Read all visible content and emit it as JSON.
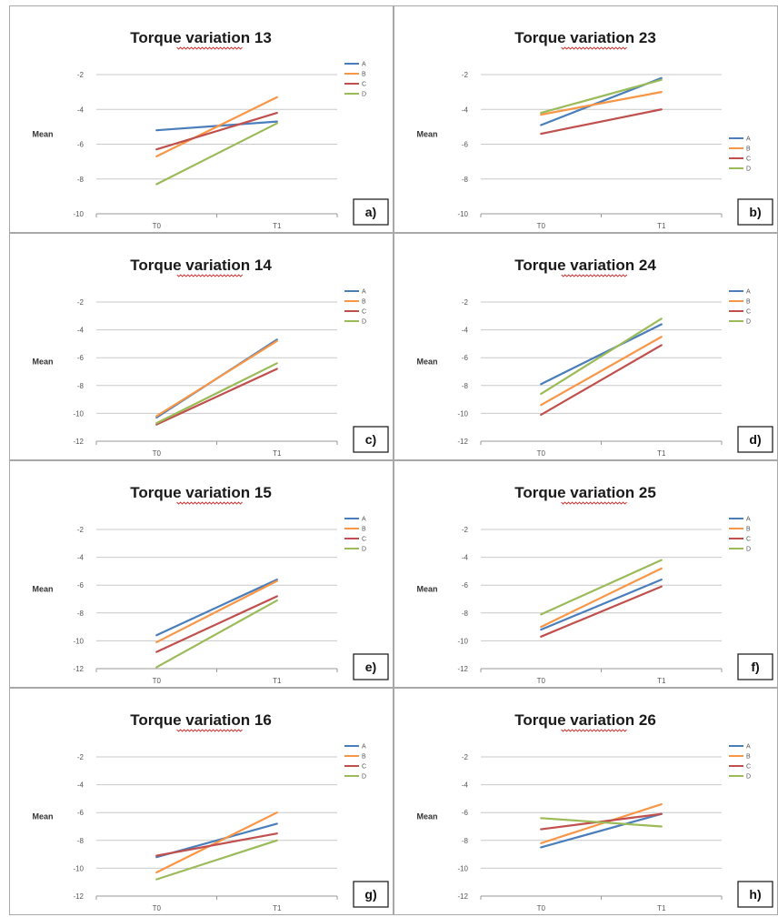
{
  "axis_label": "Mean",
  "legend": [
    "A",
    "B",
    "C",
    "D"
  ],
  "series_colors": [
    "#4a7ebb",
    "#f79646",
    "#c0504d",
    "#9bbb59"
  ],
  "chart_data": [
    {
      "type": "line",
      "title": "Torque variation 13",
      "tag": "a)",
      "categories": [
        "T0",
        "T1"
      ],
      "ylim": [
        -10,
        -2
      ],
      "yticks": [
        -2,
        -4,
        -6,
        -8,
        -10
      ],
      "series": [
        {
          "name": "A",
          "values": [
            -5.2,
            -4.7
          ]
        },
        {
          "name": "B",
          "values": [
            -6.7,
            -3.3
          ]
        },
        {
          "name": "C",
          "values": [
            -6.3,
            -4.2
          ]
        },
        {
          "name": "D",
          "values": [
            -8.3,
            -4.8
          ]
        }
      ]
    },
    {
      "type": "line",
      "title": "Torque variation 23",
      "tag": "b)",
      "categories": [
        "T0",
        "T1"
      ],
      "ylim": [
        -10,
        -2
      ],
      "yticks": [
        -2,
        -4,
        -6,
        -8,
        -10
      ],
      "series": [
        {
          "name": "A",
          "values": [
            -4.9,
            -2.2
          ]
        },
        {
          "name": "B",
          "values": [
            -4.3,
            -3.0
          ]
        },
        {
          "name": "C",
          "values": [
            -5.4,
            -4.0
          ]
        },
        {
          "name": "D",
          "values": [
            -4.2,
            -2.3
          ]
        }
      ]
    },
    {
      "type": "line",
      "title": "Torque variation 14",
      "tag": "c)",
      "categories": [
        "T0",
        "T1"
      ],
      "ylim": [
        -12,
        -2
      ],
      "yticks": [
        -2,
        -4,
        -6,
        -8,
        -10,
        -12
      ],
      "series": [
        {
          "name": "A",
          "values": [
            -10.3,
            -4.7
          ]
        },
        {
          "name": "B",
          "values": [
            -10.2,
            -4.8
          ]
        },
        {
          "name": "C",
          "values": [
            -10.8,
            -6.8
          ]
        },
        {
          "name": "D",
          "values": [
            -10.7,
            -6.4
          ]
        }
      ]
    },
    {
      "type": "line",
      "title": "Torque variation 24",
      "tag": "d)",
      "categories": [
        "T0",
        "T1"
      ],
      "ylim": [
        -12,
        -2
      ],
      "yticks": [
        -2,
        -4,
        -6,
        -8,
        -10,
        -12
      ],
      "series": [
        {
          "name": "A",
          "values": [
            -7.9,
            -3.6
          ]
        },
        {
          "name": "B",
          "values": [
            -9.4,
            -4.5
          ]
        },
        {
          "name": "C",
          "values": [
            -10.1,
            -5.1
          ]
        },
        {
          "name": "D",
          "values": [
            -8.6,
            -3.2
          ]
        }
      ]
    },
    {
      "type": "line",
      "title": "Torque variation 15",
      "tag": "e)",
      "categories": [
        "T0",
        "T1"
      ],
      "ylim": [
        -12,
        -2
      ],
      "yticks": [
        -2,
        -4,
        -6,
        -8,
        -10,
        -12
      ],
      "series": [
        {
          "name": "A",
          "values": [
            -9.6,
            -5.6
          ]
        },
        {
          "name": "B",
          "values": [
            -10.1,
            -5.7
          ]
        },
        {
          "name": "C",
          "values": [
            -10.8,
            -6.8
          ]
        },
        {
          "name": "D",
          "values": [
            -11.9,
            -7.1
          ]
        }
      ]
    },
    {
      "type": "line",
      "title": "Torque variation 25",
      "tag": "f)",
      "categories": [
        "T0",
        "T1"
      ],
      "ylim": [
        -12,
        -2
      ],
      "yticks": [
        -2,
        -4,
        -6,
        -8,
        -10,
        -12
      ],
      "series": [
        {
          "name": "A",
          "values": [
            -9.2,
            -5.6
          ]
        },
        {
          "name": "B",
          "values": [
            -9.0,
            -4.8
          ]
        },
        {
          "name": "C",
          "values": [
            -9.7,
            -6.1
          ]
        },
        {
          "name": "D",
          "values": [
            -8.1,
            -4.2
          ]
        }
      ]
    },
    {
      "type": "line",
      "title": "Torque variation 16",
      "tag": "g)",
      "categories": [
        "T0",
        "T1"
      ],
      "ylim": [
        -12,
        -2
      ],
      "yticks": [
        -2,
        -4,
        -6,
        -8,
        -10,
        -12
      ],
      "series": [
        {
          "name": "A",
          "values": [
            -9.2,
            -6.8
          ]
        },
        {
          "name": "B",
          "values": [
            -10.3,
            -6.0
          ]
        },
        {
          "name": "C",
          "values": [
            -9.1,
            -7.5
          ]
        },
        {
          "name": "D",
          "values": [
            -10.8,
            -8.0
          ]
        }
      ]
    },
    {
      "type": "line",
      "title": "Torque variation 26",
      "tag": "h)",
      "categories": [
        "T0",
        "T1"
      ],
      "ylim": [
        -12,
        -2
      ],
      "yticks": [
        -2,
        -4,
        -6,
        -8,
        -10,
        -12
      ],
      "series": [
        {
          "name": "A",
          "values": [
            -8.5,
            -6.1
          ]
        },
        {
          "name": "B",
          "values": [
            -8.2,
            -5.4
          ]
        },
        {
          "name": "C",
          "values": [
            -7.2,
            -6.1
          ]
        },
        {
          "name": "D",
          "values": [
            -6.4,
            -7.0
          ]
        }
      ]
    }
  ]
}
